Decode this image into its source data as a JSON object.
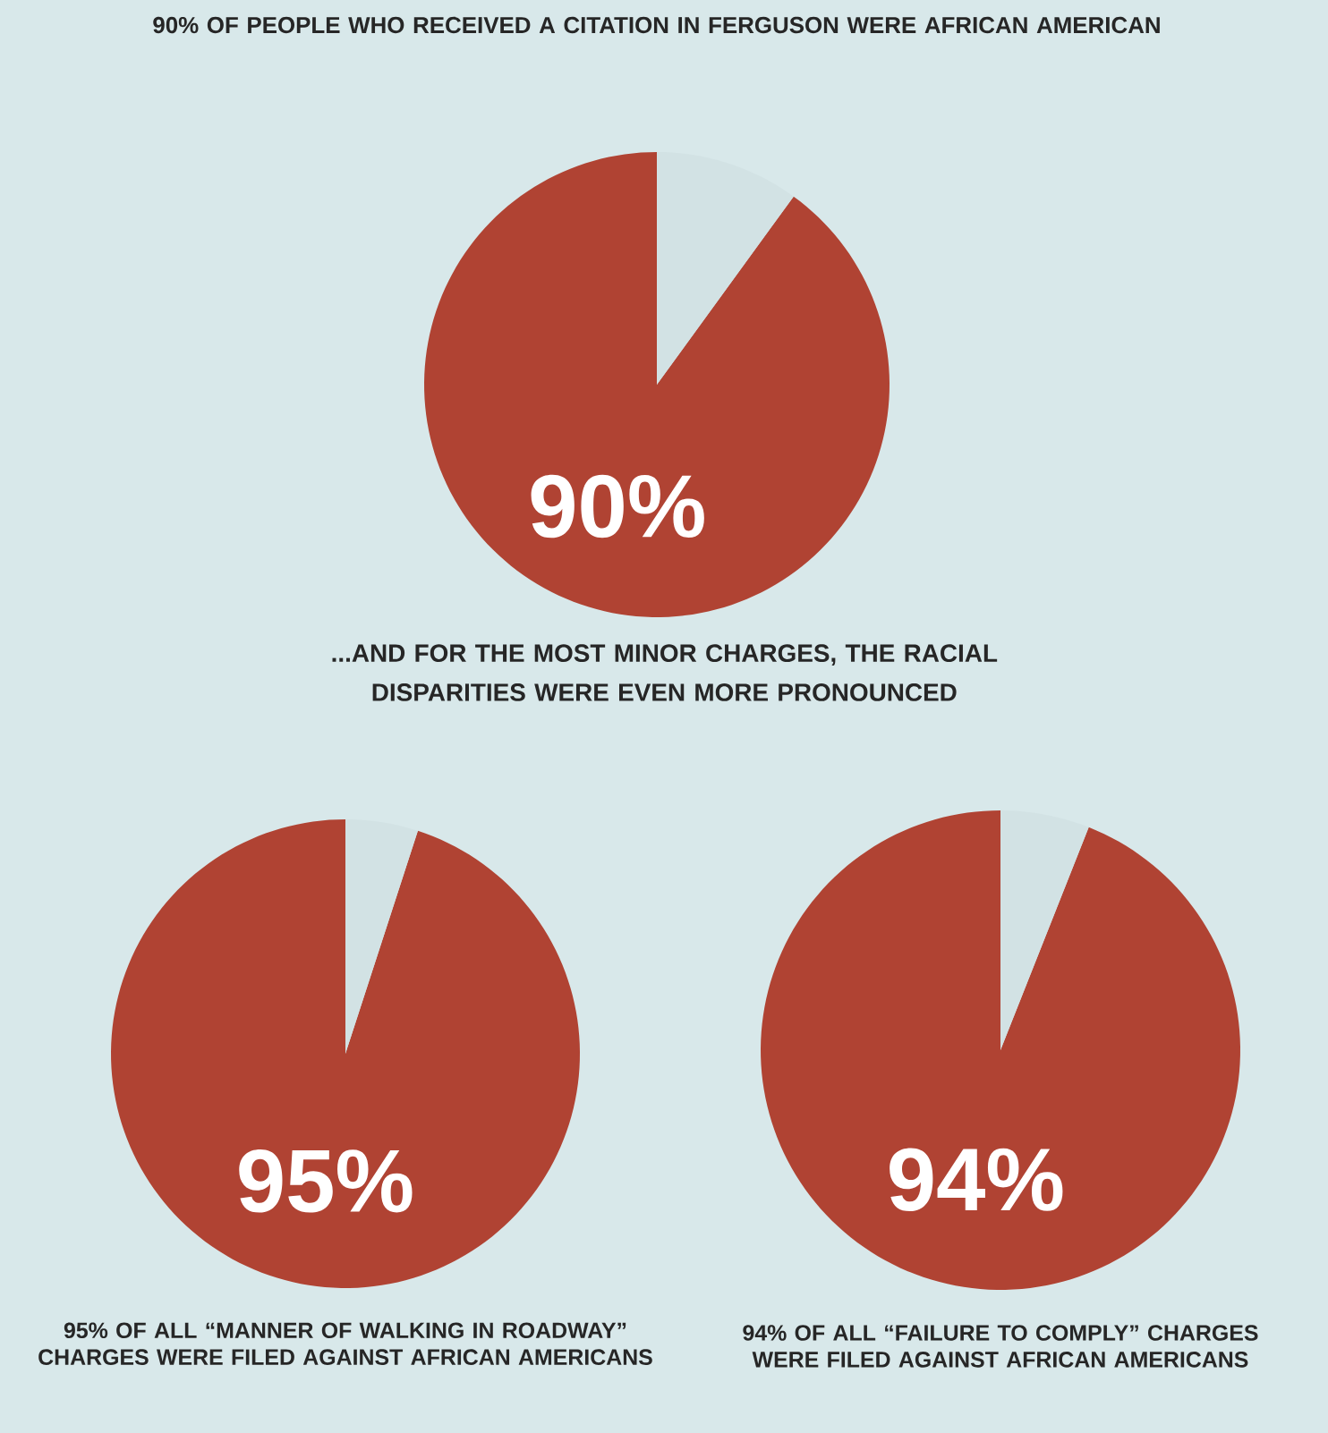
{
  "chart_data": [
    {
      "type": "pie",
      "title": "90% OF PEOPLE WHO RECEIVED A CITATION IN FERGUSON WERE AFRICAN AMERICAN",
      "categories": [
        null,
        null
      ],
      "values": [
        90,
        10
      ],
      "colors": [
        "#b04333",
        "#d2e2e4"
      ],
      "value_labels": [
        "90%",
        null
      ]
    },
    {
      "type": "pie",
      "title": "...AND FOR THE MOST MINOR CHARGES, THE RACIAL DISPARITIES WERE EVEN MORE PRONOUNCED",
      "categories": [
        null,
        null
      ],
      "values": [
        95,
        5
      ],
      "colors": [
        "#b04333",
        "#d2e2e4"
      ],
      "value_labels": [
        "95%",
        null
      ],
      "annotations": [
        "95% OF ALL “MANNER OF WALKING IN ROADWAY” CHARGES WERE FILED AGAINST AFRICAN AMERICANS"
      ]
    },
    {
      "type": "pie",
      "title": null,
      "categories": [
        null,
        null
      ],
      "values": [
        94,
        6
      ],
      "colors": [
        "#b04333",
        "#d2e2e4"
      ],
      "value_labels": [
        "94%",
        null
      ],
      "annotations": [
        "94% OF ALL “FAILURE TO COMPLY” CHARGES WERE FILED AGAINST AFRICAN AMERICANS"
      ]
    }
  ]
}
